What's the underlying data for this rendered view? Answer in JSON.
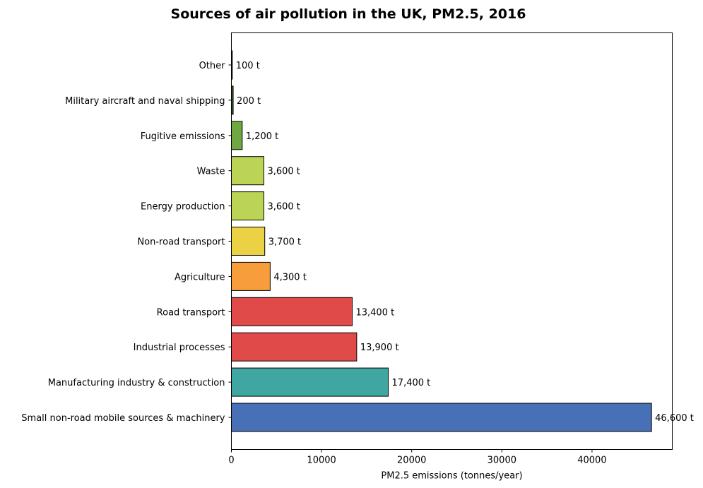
{
  "chart_data": {
    "type": "bar",
    "orientation": "horizontal",
    "title": "Sources of air pollution in the UK, PM2.5, 2016",
    "xlabel": "PM2.5 emissions (tonnes/year)",
    "ylabel": "",
    "xlim": [
      0,
      48900
    ],
    "xticks": [
      0,
      10000,
      20000,
      30000,
      40000
    ],
    "xtick_labels": [
      "0",
      "10000",
      "20000",
      "30000",
      "40000"
    ],
    "grid": false,
    "categories": [
      "Small non-road mobile sources & machinery",
      "Manufacturing industry & construction",
      "Industrial processes",
      "Road transport",
      "Agriculture",
      "Non-road transport",
      "Energy production",
      "Waste",
      "Fugitive emissions",
      "Military aircraft and naval shipping",
      "Other"
    ],
    "values": [
      46600,
      17400,
      13900,
      13400,
      4300,
      3700,
      3600,
      3600,
      1200,
      200,
      100
    ],
    "value_labels": [
      "46,600 t",
      "17,400 t",
      "13,900 t",
      "13,400 t",
      "4,300 t",
      "3,700 t",
      "3,600 t",
      "3,600 t",
      "1,200 t",
      "200 t",
      "100 t"
    ],
    "colors": [
      "#4870b6",
      "#3fa6a2",
      "#e04b4a",
      "#e04b4a",
      "#f89d3b",
      "#ebd144",
      "#bcd456",
      "#bcd456",
      "#6fa842",
      "#3a5b2d",
      "#2f3a50"
    ],
    "edge_color": "#000000"
  }
}
